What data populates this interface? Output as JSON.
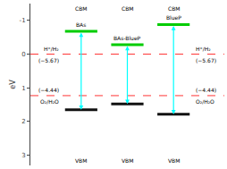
{
  "chart_data": {
    "type": "band_alignment",
    "ylabel": "eV",
    "ylim": [
      3.3,
      -1.5
    ],
    "yticks": [
      -1,
      0,
      1,
      2,
      3
    ],
    "grid": false,
    "categories": [
      "BAs",
      "BAs-BlueP",
      "BlueP"
    ],
    "series": [
      {
        "name": "CBM",
        "color": "#00CC00",
        "values": [
          -0.68,
          -0.28,
          -0.88
        ]
      },
      {
        "name": "VBM",
        "color": "#111111",
        "values": [
          1.65,
          1.48,
          1.78
        ]
      }
    ],
    "gap_arrows": {
      "color": "cyan"
    },
    "reference_lines": [
      {
        "value": 0.0,
        "label_above": "H⁺/H₂",
        "label_below": "(−5.67)"
      },
      {
        "value": 1.23,
        "label_above": "(−4.44)",
        "label_below": "O₂/H₂O"
      }
    ],
    "reference_color": "#FF3333"
  }
}
